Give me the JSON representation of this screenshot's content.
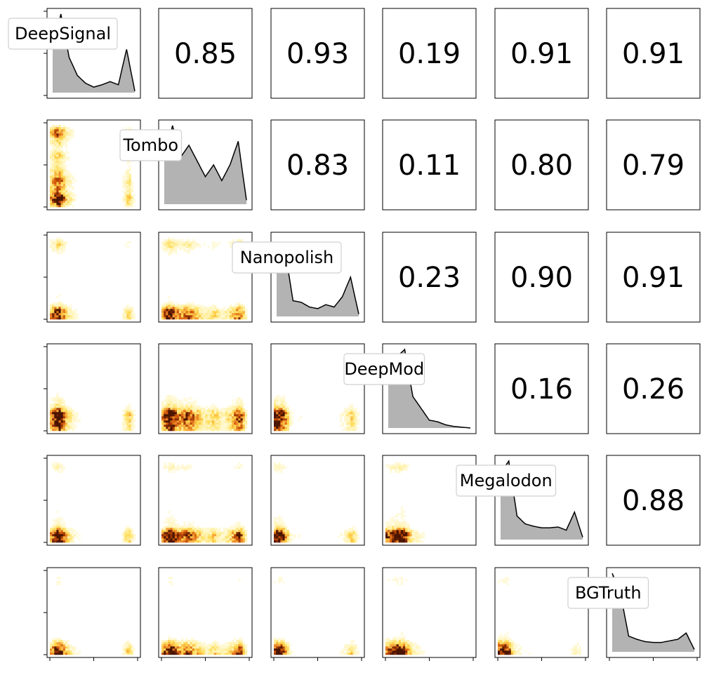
{
  "chart_data": {
    "type": "pairplot",
    "variables": [
      "DeepSignal",
      "Tombo",
      "Nanopolish",
      "DeepMod",
      "Megalodon",
      "BGTruth"
    ],
    "upper_triangle": {
      "kind": "pearson_correlation",
      "values": [
        [
          null,
          0.85,
          0.93,
          0.19,
          0.91,
          0.91
        ],
        [
          null,
          null,
          0.83,
          0.11,
          0.8,
          0.79
        ],
        [
          null,
          null,
          null,
          0.23,
          0.9,
          0.91
        ],
        [
          null,
          null,
          null,
          null,
          0.16,
          0.26
        ],
        [
          null,
          null,
          null,
          null,
          null,
          0.88
        ],
        [
          null,
          null,
          null,
          null,
          null,
          null
        ]
      ],
      "labels": [
        [
          null,
          "0.85",
          "0.93",
          "0.19",
          "0.91",
          "0.91"
        ],
        [
          null,
          null,
          "0.83",
          "0.11",
          "0.80",
          "0.79"
        ],
        [
          null,
          null,
          null,
          "0.23",
          "0.90",
          "0.91"
        ],
        [
          null,
          null,
          null,
          null,
          "0.16",
          "0.26"
        ],
        [
          null,
          null,
          null,
          null,
          null,
          "0.88"
        ]
      ]
    },
    "diagonal": {
      "kind": "kde",
      "x": [
        0.0,
        0.1,
        0.2,
        0.3,
        0.4,
        0.5,
        0.6,
        0.7,
        0.8,
        0.9,
        1.0
      ],
      "densities": {
        "DeepSignal": [
          0.55,
          1.0,
          0.45,
          0.22,
          0.12,
          0.07,
          0.1,
          0.14,
          0.1,
          0.55,
          0.02
        ],
        "Tombo": [
          0.55,
          1.0,
          0.6,
          0.75,
          0.55,
          0.35,
          0.5,
          0.3,
          0.5,
          0.8,
          0.05
        ],
        "Nanopolish": [
          0.9,
          0.85,
          0.2,
          0.18,
          0.12,
          0.1,
          0.15,
          0.12,
          0.25,
          0.5,
          0.03
        ],
        "DeepMod": [
          0.7,
          0.9,
          1.0,
          0.4,
          0.25,
          0.1,
          0.08,
          0.04,
          0.02,
          0.01,
          0.0
        ],
        "Megalodon": [
          0.85,
          1.0,
          0.3,
          0.2,
          0.17,
          0.15,
          0.15,
          0.16,
          0.12,
          0.35,
          0.03
        ],
        "BGTruth": [
          1.0,
          0.75,
          0.2,
          0.16,
          0.13,
          0.12,
          0.12,
          0.14,
          0.16,
          0.24,
          0.03
        ]
      }
    },
    "lower_triangle": {
      "kind": "2d_histogram",
      "colormap": "YlOrBr",
      "color_stops": [
        "#ffffff",
        "#fff3b0",
        "#ffd84d",
        "#f4a23a",
        "#d95f0e",
        "#993404",
        "#4a1400"
      ]
    },
    "axes": {
      "xlim": [
        0,
        1
      ],
      "ylim": [
        0,
        1
      ],
      "tick_positions": [
        0,
        0.5,
        1
      ],
      "tick_labels_shown": false
    },
    "grid": false
  }
}
